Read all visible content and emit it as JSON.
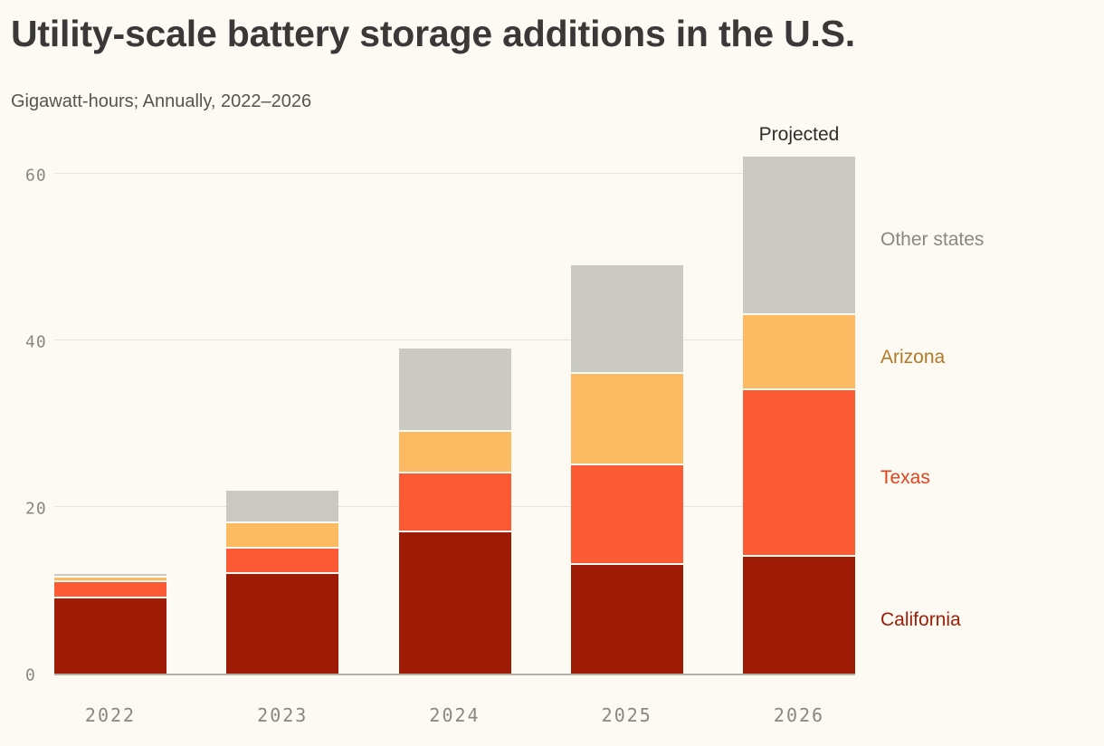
{
  "header": {
    "title": "Utility-scale battery storage additions in the U.S.",
    "subtitle": "Gigawatt-hours; Annually, 2022–2026"
  },
  "chart_data": {
    "type": "bar",
    "stacked": true,
    "title": "Utility-scale battery storage additions in the U.S.",
    "subtitle": "Gigawatt-hours; Annually, 2022–2026",
    "units": "Gigawatt-hours",
    "categories": [
      "2022",
      "2023",
      "2024",
      "2025",
      "2026"
    ],
    "series": [
      {
        "name": "California",
        "color": "#9e1c05",
        "label_color": "#9e1c05",
        "values": [
          9,
          12,
          17,
          13,
          14
        ]
      },
      {
        "name": "Texas",
        "color": "#fb5a35",
        "label_color": "#e2421c",
        "values": [
          2,
          3,
          7,
          12,
          20
        ]
      },
      {
        "name": "Arizona",
        "color": "#fcba62",
        "label_color": "#b07a28",
        "values": [
          0.5,
          3,
          5,
          11,
          9
        ]
      },
      {
        "name": "Other states",
        "color": "#cbc9c4",
        "label_color": "#8b8880",
        "values": [
          0.5,
          4,
          10,
          13,
          19
        ]
      }
    ],
    "totals": [
      12,
      22,
      39,
      49,
      62
    ],
    "annotation": {
      "text": "Projected",
      "category_index": 4
    },
    "y_ticks": [
      0,
      20,
      40,
      60
    ],
    "ylim": [
      0,
      63
    ],
    "xlabel": "",
    "ylabel": "Gigawatt-hours",
    "grid": true,
    "legend_position": "right",
    "legend_order": [
      "Other states",
      "Arizona",
      "Texas",
      "California"
    ]
  }
}
